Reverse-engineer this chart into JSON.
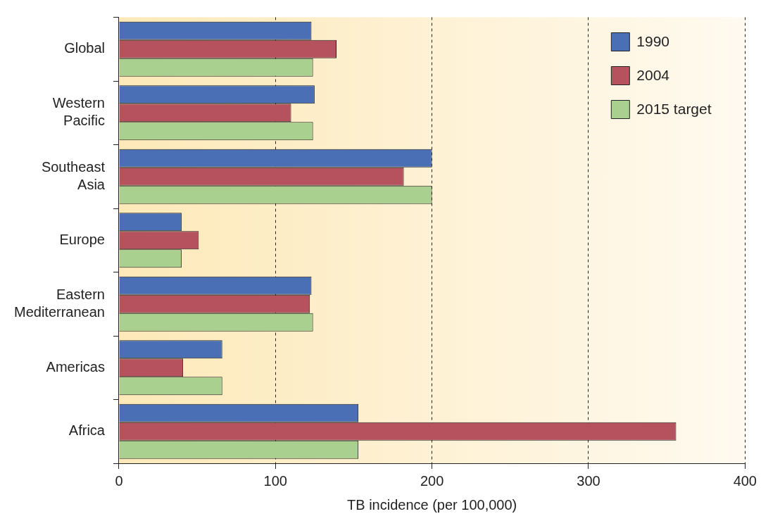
{
  "chart_data": {
    "type": "bar",
    "orientation": "horizontal",
    "xlabel": "TB incidence (per 100,000)",
    "categories": [
      "Global",
      "Western Pacific",
      "Southeast Asia",
      "Europe",
      "Eastern Mediterranean",
      "Americas",
      "Africa"
    ],
    "series": [
      {
        "name": "1990",
        "color": "#4a6fb5",
        "values": [
          123,
          125,
          200,
          40,
          123,
          66,
          153
        ]
      },
      {
        "name": "2004",
        "color": "#b5525e",
        "values": [
          139,
          110,
          182,
          51,
          122,
          41,
          356
        ]
      },
      {
        "name": "2015 target",
        "color": "#a9d08e",
        "values": [
          124,
          124,
          200,
          40,
          124,
          66,
          153
        ]
      }
    ],
    "xlim": [
      0,
      400
    ],
    "xticks": [
      0,
      100,
      200,
      300,
      400
    ],
    "grid": "x",
    "legend": "top right"
  }
}
